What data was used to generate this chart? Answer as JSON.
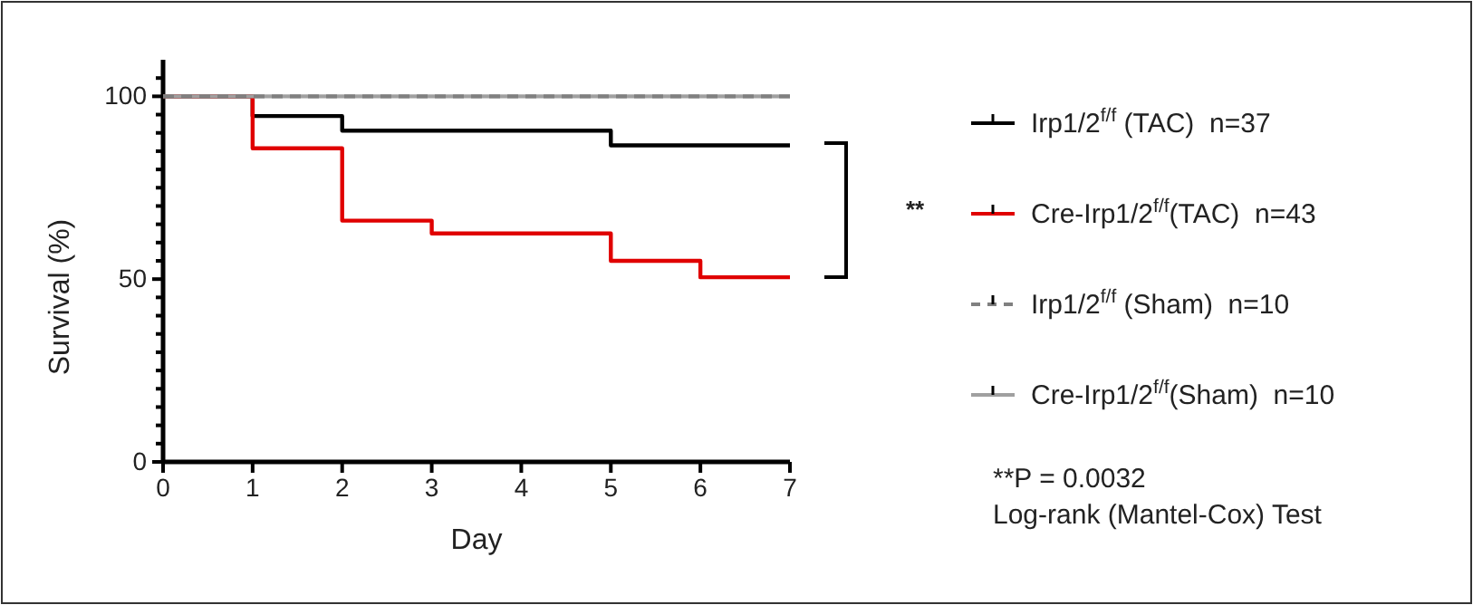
{
  "chart_data": {
    "type": "step",
    "xlabel": "Day",
    "ylabel": "Survival (%)",
    "x": [
      0,
      1,
      2,
      3,
      5,
      6,
      7
    ],
    "xlim": [
      0,
      7
    ],
    "xticks": [
      0,
      1,
      2,
      3,
      4,
      5,
      6,
      7
    ],
    "ylim": [
      0,
      110
    ],
    "yticks": [
      0,
      {
        "value": 5,
        "label": null
      },
      {
        "value": 10,
        "label": null
      },
      {
        "value": 15,
        "label": null
      },
      {
        "value": 20,
        "label": null
      },
      {
        "value": 25,
        "label": null
      },
      {
        "value": 30,
        "label": null
      },
      {
        "value": 35,
        "label": null
      },
      {
        "value": 40,
        "label": null
      },
      {
        "value": 45,
        "label": null
      },
      50,
      {
        "value": 55,
        "label": null
      },
      {
        "value": 60,
        "label": null
      },
      {
        "value": 65,
        "label": null
      },
      {
        "value": 70,
        "label": null
      },
      {
        "value": 75,
        "label": null
      },
      {
        "value": 80,
        "label": null
      },
      {
        "value": 85,
        "label": null
      },
      {
        "value": 90,
        "label": null
      },
      {
        "value": 95,
        "label": null
      },
      100,
      {
        "value": 105,
        "label": null
      }
    ],
    "series": [
      {
        "name": "Irp1/2$^{f/f}$ (TAC)  n=37",
        "color": "#000000",
        "values": [
          100,
          94.6,
          90.6,
          90.6,
          86.6,
          86.6,
          86.6
        ]
      },
      {
        "name": "Cre-Irp1/2$^{f/f}$(TAC)  n=43",
        "color": "#e00000",
        "values": [
          100,
          85.8,
          66,
          62.5,
          55,
          50.5,
          50.5
        ]
      },
      {
        "name": "Cre-Irp1/2$^{f/f}$(Sham)  n=10",
        "color": "#a0a0a0",
        "values": [
          100,
          100,
          100,
          100,
          100,
          100,
          100
        ]
      },
      {
        "name": "Irp1/2$^{f/f}$ (Sham)  n=10",
        "color": "#808080",
        "line_style": "dashed",
        "values": [
          100,
          100,
          100,
          100,
          100,
          100,
          100
        ]
      }
    ],
    "legend": "right",
    "grid": false,
    "annotations": [
      "**",
      "**P = 0.0032",
      "Log-rank (Mantel-Cox) Test"
    ]
  }
}
